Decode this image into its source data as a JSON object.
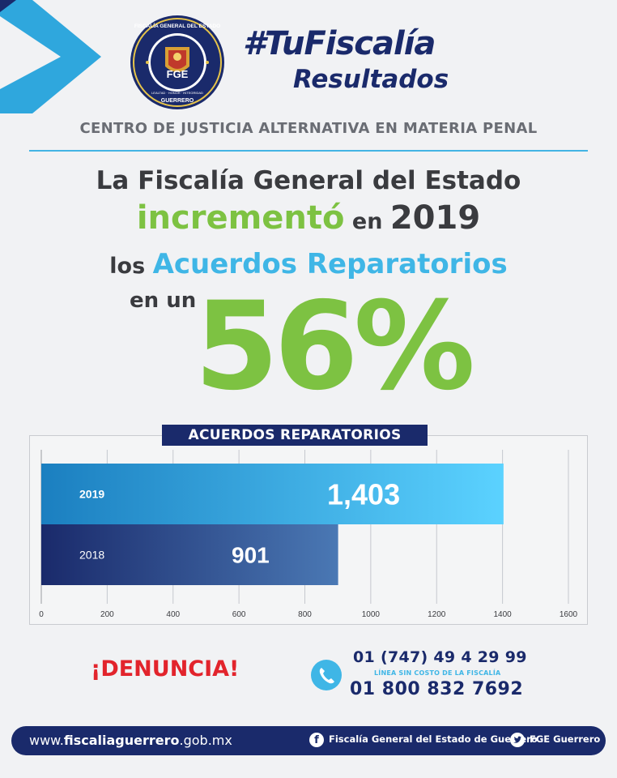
{
  "header": {
    "seal_text": [
      "FISCALÍA GENERAL DEL ESTADO",
      "FGE",
      "GUERRERO",
      "LEALTAD · HONOR · INTEGRIDAD"
    ],
    "hashtag": "#TuFiscalía",
    "subtitle": "Resultados",
    "section_title": "CENTRO DE JUSTICIA ALTERNATIVA EN MATERIA PENAL"
  },
  "headline": {
    "line1": "La Fiscalía General del Estado",
    "line2_a": "incrementó",
    "line2_b": " en ",
    "line2_c": "2019",
    "line3_a": "los ",
    "line3_b": "Acuerdos Reparatorios",
    "line4": "en un",
    "percent": "56%"
  },
  "chart_data": {
    "type": "bar",
    "orientation": "horizontal",
    "title": "ACUERDOS REPARATORIOS",
    "categories": [
      "2019",
      "2018"
    ],
    "values": [
      1403,
      901
    ],
    "value_labels": [
      "1,403",
      "901"
    ],
    "xlim": [
      0,
      1600
    ],
    "x_ticks": [
      0,
      200,
      400,
      600,
      800,
      1000,
      1200,
      1400,
      1600
    ],
    "grid": true,
    "colors": [
      "#2fa7dd",
      "#1e3a7a"
    ]
  },
  "contact": {
    "denuncia": "¡DENUNCIA!",
    "phone1": "01 (747) 49 4 29 99",
    "note": "LÍNEA SIN COSTO DE LA FISCALÍA",
    "phone2": "01 800 832 7692"
  },
  "footer": {
    "website_prefix": "www.",
    "website_bold": "fiscaliaguerrero",
    "website_suffix": ".gob.mx",
    "facebook": "Fiscalía General del Estado de Guerrero",
    "twitter": "FGE Guerrero",
    "icons": [
      "facebook-icon",
      "twitter-icon",
      "phone-icon"
    ]
  }
}
